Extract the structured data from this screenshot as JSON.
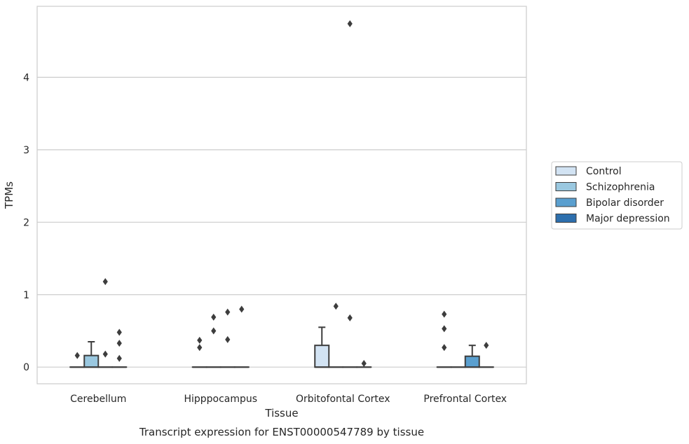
{
  "caption": "Transcript expression for ENST00000547789 by tissue",
  "chart_data": {
    "type": "box",
    "title": "",
    "xlabel": "Tissue",
    "ylabel": "TPMs",
    "ylim": [
      -0.23,
      4.98
    ],
    "yticks": [
      0,
      1,
      2,
      3,
      4
    ],
    "grid": "horizontal",
    "legend_position": "right",
    "categories": [
      "Cerebellum",
      "Hipppocampus",
      "Orbitofontal Cortex",
      "Prefrontal Cortex"
    ],
    "series": [
      {
        "name": "Control",
        "color": "#d2e3f3",
        "boxes": [
          {
            "q1": 0,
            "median": 0,
            "q3": 0,
            "whisker_low": 0,
            "whisker_high": 0,
            "outliers": [
              0.16
            ]
          },
          {
            "q1": 0,
            "median": 0,
            "q3": 0,
            "whisker_low": 0,
            "whisker_high": 0,
            "outliers": [
              0.27,
              0.37
            ]
          },
          {
            "q1": 0,
            "median": 0,
            "q3": 0.3,
            "whisker_low": 0,
            "whisker_high": 0.55,
            "outliers": []
          },
          {
            "q1": 0,
            "median": 0,
            "q3": 0,
            "whisker_low": 0,
            "whisker_high": 0,
            "outliers": [
              0.27,
              0.53,
              0.73
            ]
          }
        ]
      },
      {
        "name": "Schizophrenia",
        "color": "#9ac8e0",
        "boxes": [
          {
            "q1": 0,
            "median": 0,
            "q3": 0.16,
            "whisker_low": 0,
            "whisker_high": 0.35,
            "outliers": []
          },
          {
            "q1": 0,
            "median": 0,
            "q3": 0,
            "whisker_low": 0,
            "whisker_high": 0,
            "outliers": [
              0.5,
              0.69
            ]
          },
          {
            "q1": 0,
            "median": 0,
            "q3": 0,
            "whisker_low": 0,
            "whisker_high": 0,
            "outliers": [
              0.84
            ]
          },
          {
            "q1": 0,
            "median": 0,
            "q3": 0,
            "whisker_low": 0,
            "whisker_high": 0,
            "outliers": []
          }
        ]
      },
      {
        "name": "Bipolar disorder",
        "color": "#5a9fcf",
        "boxes": [
          {
            "q1": 0,
            "median": 0,
            "q3": 0,
            "whisker_low": 0,
            "whisker_high": 0,
            "outliers": [
              1.18,
              0.18
            ]
          },
          {
            "q1": 0,
            "median": 0,
            "q3": 0,
            "whisker_low": 0,
            "whisker_high": 0,
            "outliers": [
              0.76,
              0.38
            ]
          },
          {
            "q1": 0,
            "median": 0,
            "q3": 0,
            "whisker_low": 0,
            "whisker_high": 0,
            "outliers": [
              4.74,
              0.68
            ]
          },
          {
            "q1": 0,
            "median": 0,
            "q3": 0.15,
            "whisker_low": 0,
            "whisker_high": 0.3,
            "outliers": []
          }
        ]
      },
      {
        "name": "Major depression",
        "color": "#2d6fad",
        "boxes": [
          {
            "q1": 0,
            "median": 0,
            "q3": 0,
            "whisker_low": 0,
            "whisker_high": 0,
            "outliers": [
              0.48,
              0.33,
              0.12
            ]
          },
          {
            "q1": 0,
            "median": 0,
            "q3": 0,
            "whisker_low": 0,
            "whisker_high": 0,
            "outliers": [
              0.8
            ]
          },
          {
            "q1": 0,
            "median": 0,
            "q3": 0,
            "whisker_low": 0,
            "whisker_high": 0,
            "outliers": [
              0.05
            ]
          },
          {
            "q1": 0,
            "median": 0,
            "q3": 0,
            "whisker_low": 0,
            "whisker_high": 0,
            "outliers": [
              0.3
            ]
          }
        ]
      }
    ]
  }
}
